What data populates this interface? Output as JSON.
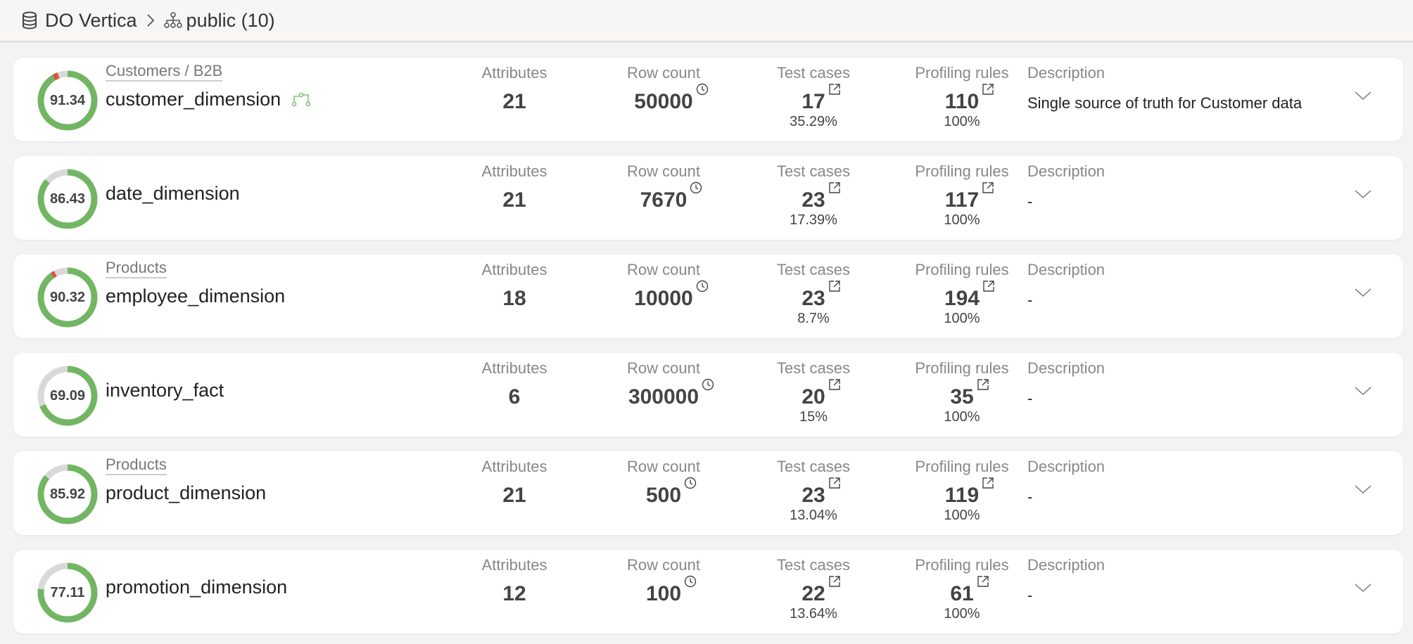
{
  "breadcrumb": {
    "database": "DO Vertica",
    "schema": "public (10)",
    "database_icon": "database-icon",
    "separator_icon": "chevron-right-icon",
    "schema_icon": "hierarchy-icon"
  },
  "labels": {
    "attributes": "Attributes",
    "row_count": "Row count",
    "test_cases": "Test cases",
    "profiling_rules": "Profiling rules",
    "description": "Description"
  },
  "colors": {
    "good": "#72b664",
    "bad": "#d9533c",
    "neutral": "#d9d9d9"
  },
  "tables": [
    {
      "score": "91.34",
      "score_pct": 91.34,
      "bad_pct": 3,
      "domain": "Customers / B2B",
      "name": "customer_dimension",
      "lineage_icon": true,
      "attributes": "21",
      "row_count": "50000",
      "test_cases": "17",
      "test_pct": "35.29%",
      "profiling_rules": "110",
      "profiling_pct": "100%",
      "description": "Single source of truth for Customer data"
    },
    {
      "score": "86.43",
      "score_pct": 86.43,
      "bad_pct": 0,
      "domain": "",
      "name": "date_dimension",
      "lineage_icon": false,
      "attributes": "21",
      "row_count": "7670",
      "test_cases": "23",
      "test_pct": "17.39%",
      "profiling_rules": "117",
      "profiling_pct": "100%",
      "description": "-"
    },
    {
      "score": "90.32",
      "score_pct": 90.32,
      "bad_pct": 2,
      "domain": "Products",
      "name": "employee_dimension",
      "lineage_icon": false,
      "attributes": "18",
      "row_count": "10000",
      "test_cases": "23",
      "test_pct": "8.7%",
      "profiling_rules": "194",
      "profiling_pct": "100%",
      "description": "-"
    },
    {
      "score": "69.09",
      "score_pct": 69.09,
      "bad_pct": 0,
      "domain": "",
      "name": "inventory_fact",
      "lineage_icon": false,
      "attributes": "6",
      "row_count": "300000",
      "test_cases": "20",
      "test_pct": "15%",
      "profiling_rules": "35",
      "profiling_pct": "100%",
      "description": "-"
    },
    {
      "score": "85.92",
      "score_pct": 85.92,
      "bad_pct": 0,
      "domain": "Products",
      "name": "product_dimension",
      "lineage_icon": false,
      "attributes": "21",
      "row_count": "500",
      "test_cases": "23",
      "test_pct": "13.04%",
      "profiling_rules": "119",
      "profiling_pct": "100%",
      "description": "-"
    },
    {
      "score": "77.11",
      "score_pct": 77.11,
      "bad_pct": 0,
      "domain": "",
      "name": "promotion_dimension",
      "lineage_icon": false,
      "attributes": "12",
      "row_count": "100",
      "test_cases": "22",
      "test_pct": "13.64%",
      "profiling_rules": "61",
      "profiling_pct": "100%",
      "description": "-"
    }
  ]
}
